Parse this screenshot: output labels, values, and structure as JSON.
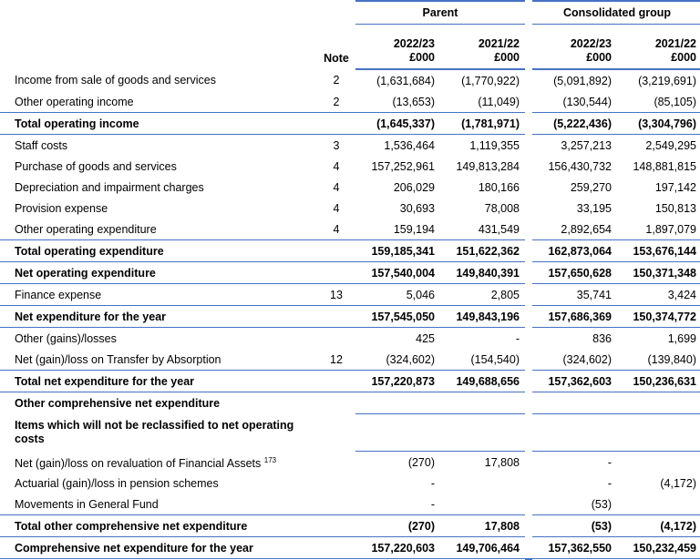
{
  "headers": {
    "parent": "Parent",
    "group": "Consolidated group",
    "note": "Note",
    "cols": [
      {
        "year": "2022/23",
        "unit": "£000"
      },
      {
        "year": "2021/22",
        "unit": "£000"
      },
      {
        "year": "2022/23",
        "unit": "£000"
      },
      {
        "year": "2021/22",
        "unit": "£000"
      }
    ]
  },
  "rows": [
    {
      "label": "Income from sale of goods and services",
      "note": "2",
      "v": [
        "(1,631,684)",
        "(1,770,922)",
        "(5,091,892)",
        "(3,219,691)"
      ]
    },
    {
      "label": "Other operating income",
      "note": "2",
      "v": [
        "(13,653)",
        "(11,049)",
        "(130,544)",
        "(85,105)"
      ]
    },
    {
      "label": "Total operating income",
      "note": "",
      "v": [
        "(1,645,337)",
        "(1,781,971)",
        "(5,222,436)",
        "(3,304,796)"
      ]
    },
    {
      "label": "Staff costs",
      "note": "3",
      "v": [
        "1,536,464",
        "1,119,355",
        "3,257,213",
        "2,549,295"
      ]
    },
    {
      "label": "Purchase of goods and services",
      "note": "4",
      "v": [
        "157,252,961",
        "149,813,284",
        "156,430,732",
        "148,881,815"
      ]
    },
    {
      "label": "Depreciation and impairment charges",
      "note": "4",
      "v": [
        "206,029",
        "180,166",
        "259,270",
        "197,142"
      ]
    },
    {
      "label": "Provision expense",
      "note": "4",
      "v": [
        "30,693",
        "78,008",
        "33,195",
        "150,813"
      ]
    },
    {
      "label": "Other operating expenditure",
      "note": "4",
      "v": [
        "159,194",
        "431,549",
        "2,892,654",
        "1,897,079"
      ]
    },
    {
      "label": "Total operating expenditure",
      "note": "",
      "v": [
        "159,185,341",
        "151,622,362",
        "162,873,064",
        "153,676,144"
      ]
    },
    {
      "label": "Net operating expenditure",
      "note": "",
      "v": [
        "157,540,004",
        "149,840,391",
        "157,650,628",
        "150,371,348"
      ]
    },
    {
      "label": "Finance expense",
      "note": "13",
      "v": [
        "5,046",
        "2,805",
        "35,741",
        "3,424"
      ]
    },
    {
      "label": "Net expenditure for the year",
      "note": "",
      "v": [
        "157,545,050",
        "149,843,196",
        "157,686,369",
        "150,374,772"
      ]
    },
    {
      "label": "Other (gains)/losses",
      "note": "",
      "v": [
        "425",
        "-",
        "836",
        "1,699"
      ]
    },
    {
      "label": "Net (gain)/loss on Transfer by Absorption",
      "note": "12",
      "v": [
        "(324,602)",
        "(154,540)",
        "(324,602)",
        "(139,840)"
      ]
    },
    {
      "label": "Total net expenditure for the year",
      "note": "",
      "v": [
        "157,220,873",
        "149,688,656",
        "157,362,603",
        "150,236,631"
      ]
    },
    {
      "label": "Other comprehensive net expenditure",
      "note": "",
      "v": [
        "",
        "",
        "",
        ""
      ]
    },
    {
      "label": "Items which will not be reclassified to net operating costs",
      "note": "",
      "v": [
        "",
        "",
        "",
        ""
      ]
    },
    {
      "label": "Net (gain)/loss on revaluation of Financial Assets",
      "sup": "173",
      "note": "",
      "v": [
        "(270)",
        "17,808",
        "-",
        ""
      ]
    },
    {
      "label": "Actuarial (gain)/loss in pension schemes",
      "note": "",
      "v": [
        "-",
        "",
        "-",
        "(4,172)"
      ]
    },
    {
      "label": "Movements in General Fund",
      "note": "",
      "v": [
        "-",
        "",
        "(53)",
        ""
      ]
    },
    {
      "label": "Total other comprehensive net expenditure",
      "note": "",
      "v": [
        "(270)",
        "17,808",
        "(53)",
        "(4,172)"
      ]
    },
    {
      "label": "Comprehensive net expenditure for the year",
      "note": "",
      "v": [
        "157,220,603",
        "149,706,464",
        "157,362,550",
        "150,232,459"
      ]
    }
  ]
}
